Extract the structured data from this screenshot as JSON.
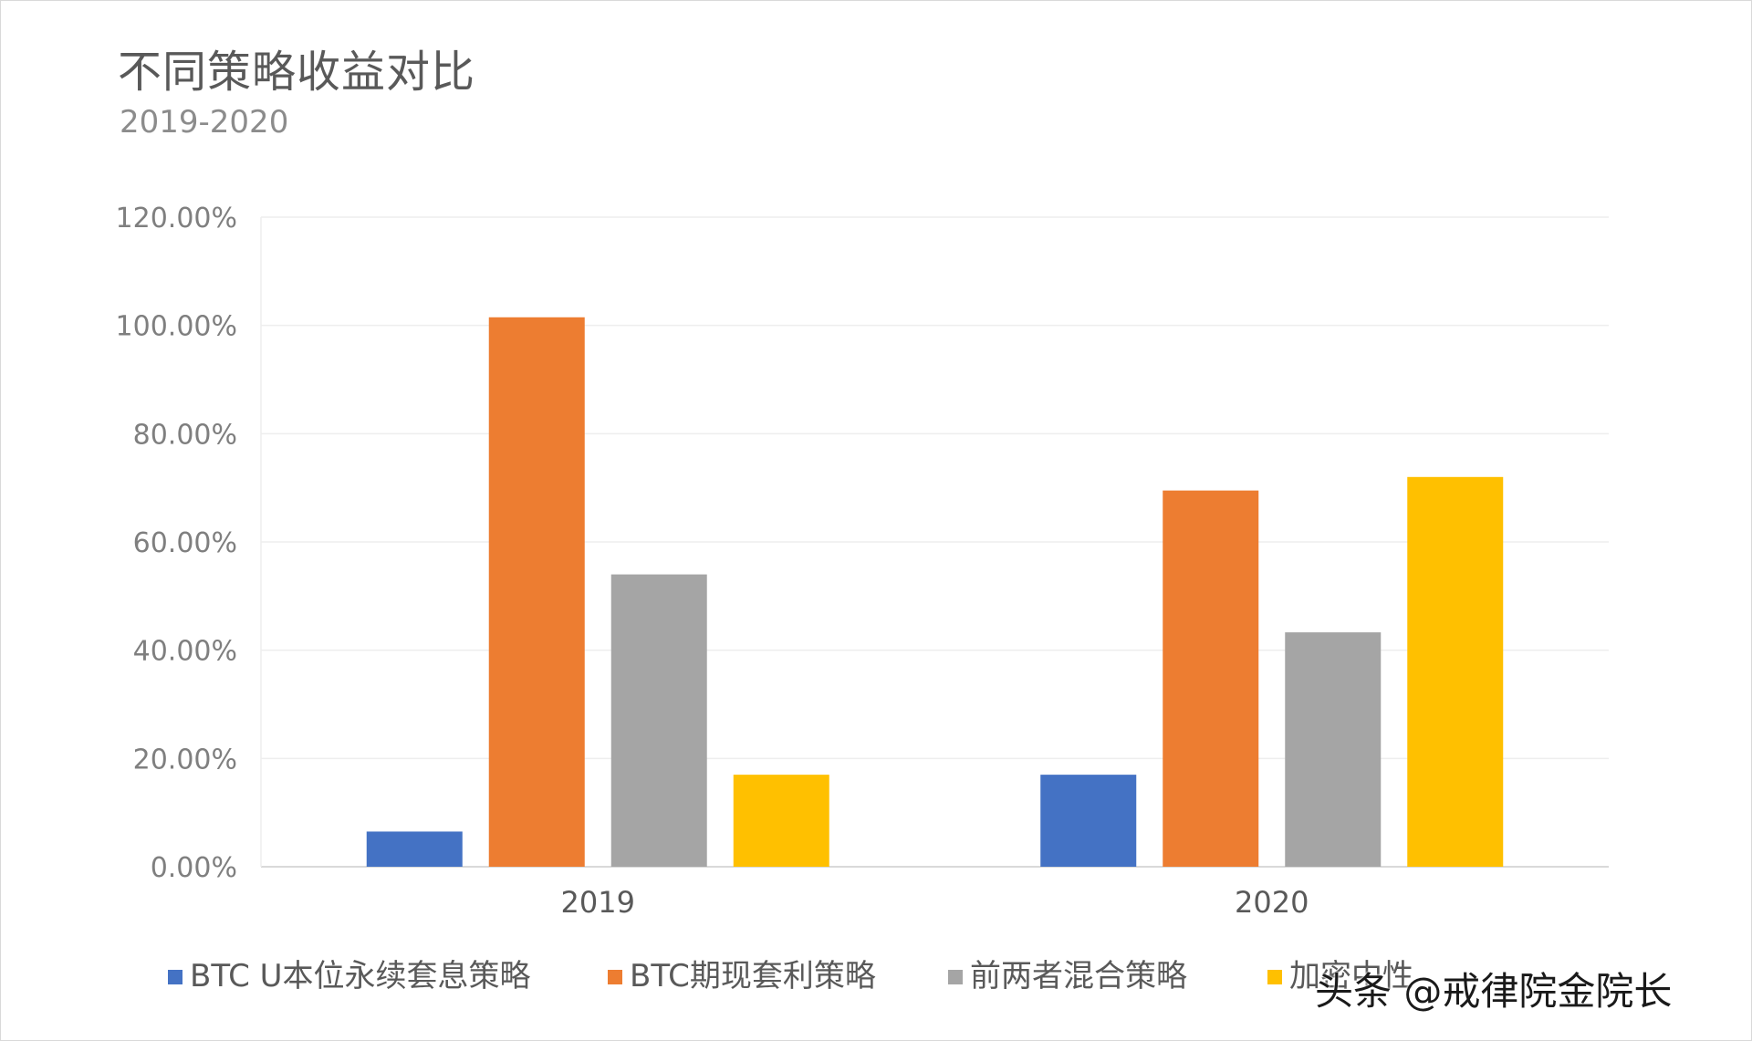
{
  "chart_data": {
    "type": "bar",
    "title": "不同策略收益对比",
    "subtitle": "2019-2020",
    "categories": [
      "2019",
      "2020"
    ],
    "series": [
      {
        "name": "BTC U本位永续套息策略",
        "color": "#4472C4",
        "values": [
          6.5,
          17.0
        ]
      },
      {
        "name": "BTC期现套利策略",
        "color": "#ED7D31",
        "values": [
          101.5,
          69.5
        ]
      },
      {
        "name": "前两者混合策略",
        "color": "#A5A5A5",
        "values": [
          54.0,
          43.3
        ]
      },
      {
        "name": "加密中性",
        "color": "#FFC000",
        "values": [
          17.0,
          72.0
        ]
      }
    ],
    "ylim": [
      0,
      120
    ],
    "yticks": [
      0,
      20,
      40,
      60,
      80,
      100,
      120
    ],
    "ytick_labels": [
      "0.00%",
      "20.00%",
      "40.00%",
      "60.00%",
      "80.00%",
      "100.00%",
      "120.00%"
    ],
    "xlabel": "",
    "ylabel": "",
    "grid": true,
    "legend_position": "bottom"
  },
  "watermark": "头条 @戒律院金院长"
}
